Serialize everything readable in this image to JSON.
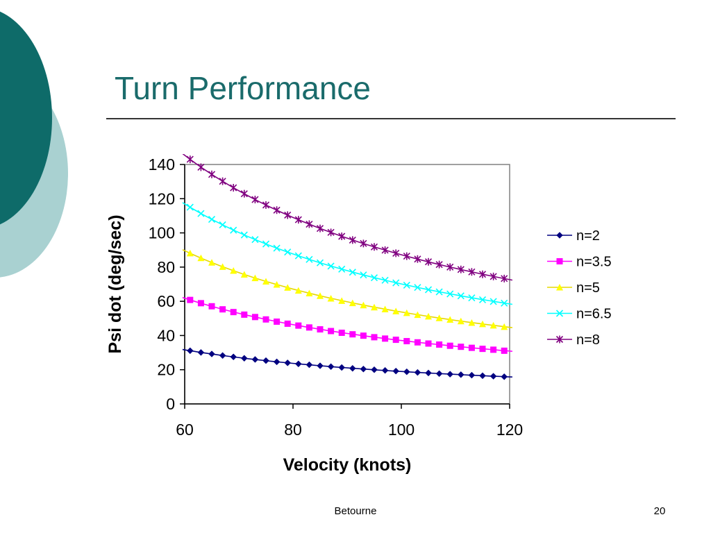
{
  "slide": {
    "title": "Turn Performance",
    "footer_left": "Betourne",
    "page_number": "20"
  },
  "colors": {
    "title": "#1a6b6b",
    "deco_dark": "#0e6b69",
    "deco_light": "#a9d1d1"
  },
  "chart_data": {
    "type": "line",
    "title": "",
    "xlabel": "Velocity (knots)",
    "ylabel": "Psi dot (deg/sec)",
    "xlim": [
      60,
      120
    ],
    "ylim": [
      0,
      140
    ],
    "xticks": [
      60,
      80,
      100,
      120
    ],
    "yticks": [
      0,
      20,
      40,
      60,
      80,
      100,
      120,
      140
    ],
    "grid": false,
    "legend_position": "right",
    "x": [
      61,
      63,
      65,
      67,
      69,
      71,
      73,
      75,
      77,
      79,
      81,
      83,
      85,
      87,
      89,
      91,
      93,
      95,
      97,
      99,
      101,
      103,
      105,
      107,
      109,
      111,
      113,
      115,
      117,
      119
    ],
    "series": [
      {
        "name": "n=2",
        "color": "#000080",
        "marker": "diamond",
        "values": [
          31.1,
          30.1,
          29.2,
          28.3,
          27.5,
          26.7,
          26.0,
          25.3,
          24.6,
          24.0,
          23.4,
          22.9,
          22.3,
          21.8,
          21.3,
          20.8,
          20.4,
          20.0,
          19.6,
          19.2,
          18.8,
          18.4,
          18.1,
          17.7,
          17.4,
          17.1,
          16.8,
          16.5,
          16.2,
          15.9
        ]
      },
      {
        "name": "n=3.5",
        "color": "#ff00ff",
        "marker": "square",
        "values": [
          60.8,
          58.9,
          57.1,
          55.3,
          53.7,
          52.2,
          50.8,
          49.4,
          48.1,
          46.9,
          45.8,
          44.7,
          43.6,
          42.6,
          41.6,
          40.7,
          39.9,
          39.0,
          38.2,
          37.5,
          36.7,
          36.0,
          35.3,
          34.7,
          34.0,
          33.4,
          32.8,
          32.2,
          31.7,
          31.1
        ]
      },
      {
        "name": "n=5",
        "color": "#ffff00",
        "marker": "triangle",
        "values": [
          88.1,
          85.3,
          82.7,
          80.2,
          77.9,
          75.7,
          73.6,
          71.6,
          69.8,
          68.0,
          66.3,
          64.7,
          63.2,
          61.7,
          60.3,
          59.0,
          57.7,
          56.5,
          55.4,
          54.2,
          53.2,
          52.1,
          51.2,
          50.2,
          49.3,
          48.4,
          47.5,
          46.7,
          45.9,
          45.1
        ]
      },
      {
        "name": "n=6.5",
        "color": "#00ffff",
        "marker": "x",
        "values": [
          115.0,
          111.3,
          107.9,
          104.7,
          101.6,
          98.8,
          96.1,
          93.5,
          91.1,
          88.8,
          86.6,
          84.5,
          82.5,
          80.6,
          78.8,
          77.0,
          75.4,
          73.8,
          72.3,
          70.8,
          69.4,
          68.1,
          66.8,
          65.5,
          64.3,
          63.2,
          62.0,
          60.9,
          59.9,
          58.9
        ]
      },
      {
        "name": "n=8",
        "color": "#800080",
        "marker": "star",
        "values": [
          143.0,
          138.4,
          134.2,
          130.2,
          126.4,
          122.9,
          119.5,
          116.3,
          113.3,
          110.4,
          107.7,
          105.1,
          102.6,
          100.3,
          98.0,
          95.8,
          93.8,
          91.8,
          89.9,
          88.1,
          86.4,
          84.7,
          83.1,
          81.5,
          80.0,
          78.6,
          77.2,
          75.8,
          74.5,
          73.3
        ]
      }
    ]
  }
}
